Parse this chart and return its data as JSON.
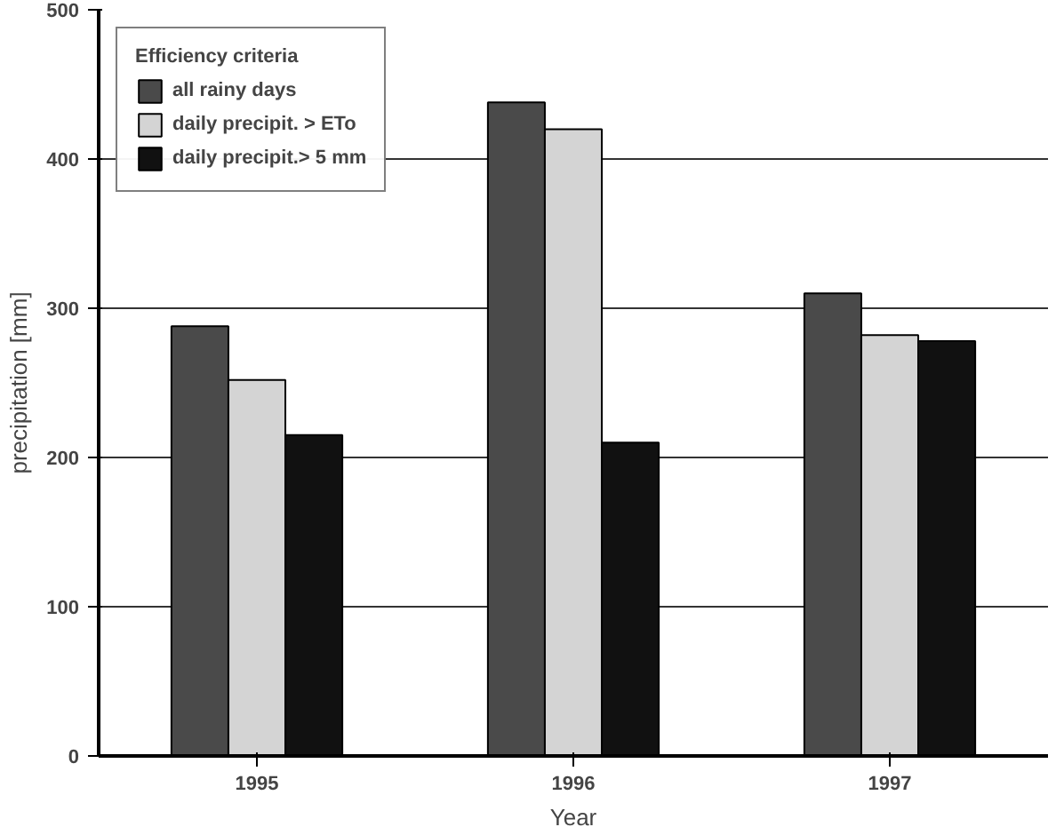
{
  "chart_data": {
    "type": "bar",
    "xlabel": "Year",
    "ylabel": "precipitation [mm]",
    "legend_title": "Efficiency criteria",
    "categories": [
      "1995",
      "1996",
      "1997"
    ],
    "series": [
      {
        "name": "all rainy days",
        "color": "#4a4a4a",
        "values": [
          288,
          438,
          310
        ]
      },
      {
        "name": "daily precipit. > ETo",
        "color": "#d4d4d4",
        "values": [
          252,
          420,
          282
        ]
      },
      {
        "name": "daily precipit.> 5 mm",
        "color": "#111111",
        "values": [
          215,
          210,
          278
        ]
      }
    ],
    "ylim": [
      0,
      500
    ],
    "yticks": [
      0,
      100,
      200,
      300,
      400,
      500
    ],
    "grid": "y",
    "legend": "top left"
  }
}
